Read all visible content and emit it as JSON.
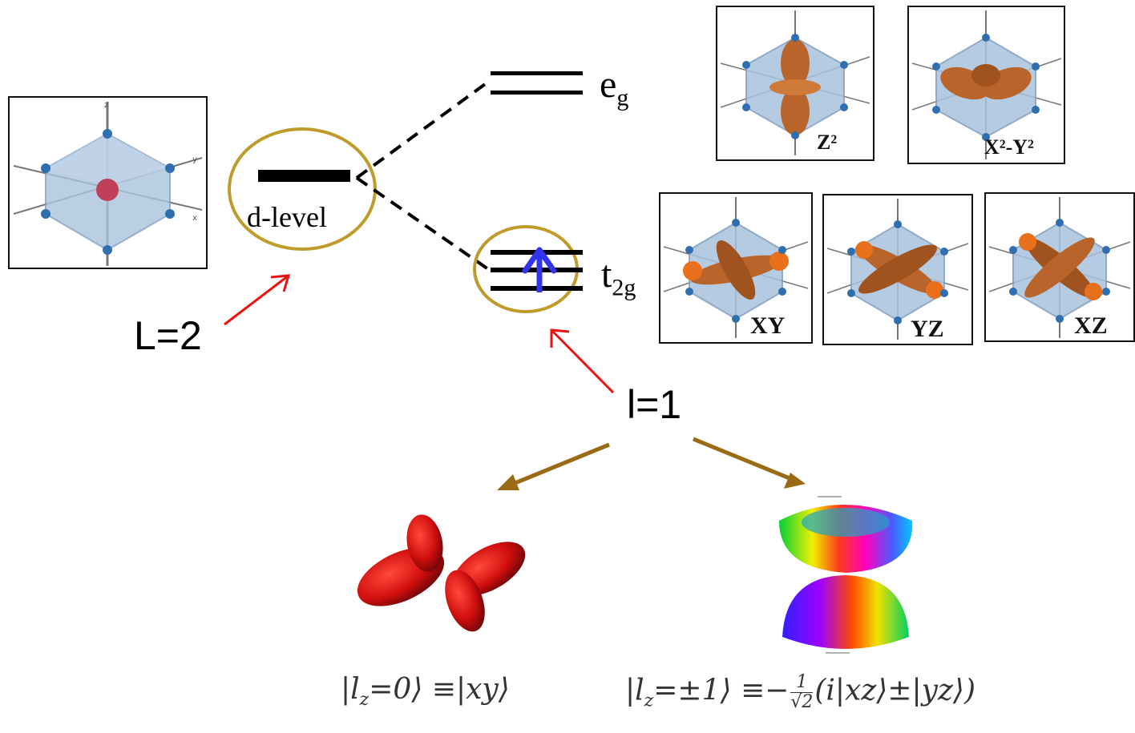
{
  "levels": {
    "d_level_label": "d-level",
    "eg_label_main": "e",
    "eg_label_sub": "g",
    "t2g_label_main": "t",
    "t2g_label_sub": "2g"
  },
  "quantum_numbers": {
    "L_label": "L=2",
    "l_label": "l=1"
  },
  "orbital_panels": {
    "z2": "Z²",
    "x2y2": "X²-Y²",
    "xy": "XY",
    "yz": "YZ",
    "xz": "XZ"
  },
  "formulas": {
    "lz0_left": "|l",
    "lz0_sub": "z",
    "lz0_right": "=0⟩ ≡|xy⟩",
    "lz1_left": "|l",
    "lz1_sub": "z",
    "lz1_mid": "=±1⟩ ≡−",
    "lz1_frac_num": "1",
    "lz1_frac_den": "√2",
    "lz1_right": "(i|xz⟩±|yz⟩)"
  },
  "colors": {
    "ellipse": "#c09a2a",
    "red_arrow": "#ee1111",
    "brown_arrow": "#9a6a14",
    "spin_arrow": "#3333ee",
    "orbital": "#b8642a",
    "octahedron": "#9fb9d6"
  }
}
